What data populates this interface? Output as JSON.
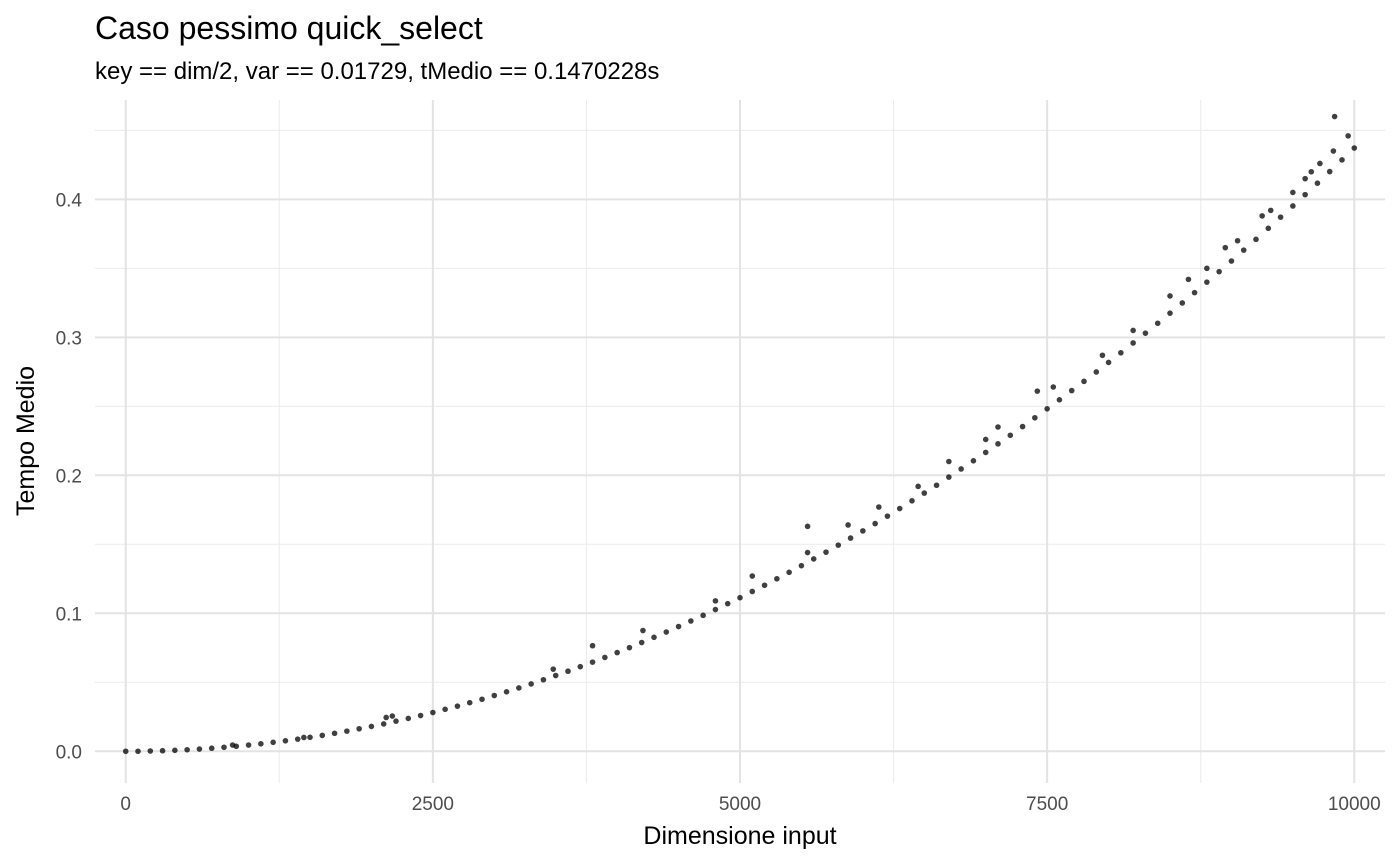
{
  "chart_data": {
    "type": "scatter",
    "title": "Caso pessimo quick_select",
    "subtitle": "key == dim/2, var == 0.01729, tMedio == 0.1470228s",
    "xlabel": "Dimensione input",
    "ylabel": "Tempo Medio",
    "xlim": [
      -250,
      10250
    ],
    "ylim": [
      -0.023,
      0.472
    ],
    "x_ticks": [
      0,
      2500,
      5000,
      7500,
      10000
    ],
    "x_tick_labels": [
      "0",
      "2500",
      "5000",
      "7500",
      "10000"
    ],
    "y_ticks": [
      0.0,
      0.1,
      0.2,
      0.3,
      0.4
    ],
    "y_tick_labels": [
      "0.0",
      "0.1",
      "0.2",
      "0.3",
      "0.4"
    ],
    "grid": true,
    "point_color": "#000000",
    "series": [
      {
        "points": [
          [
            0,
            0.0
          ],
          [
            100,
            0.0
          ],
          [
            200,
            0.0002
          ],
          [
            300,
            0.0004
          ],
          [
            400,
            0.0007
          ],
          [
            500,
            0.0011
          ],
          [
            600,
            0.0016
          ],
          [
            700,
            0.0022
          ],
          [
            800,
            0.0029
          ],
          [
            900,
            0.0036
          ],
          [
            1000,
            0.0045
          ],
          [
            1100,
            0.0054
          ],
          [
            1200,
            0.0065
          ],
          [
            1300,
            0.0076
          ],
          [
            1400,
            0.0088
          ],
          [
            1500,
            0.0101
          ],
          [
            1600,
            0.0115
          ],
          [
            1700,
            0.013
          ],
          [
            1800,
            0.0146
          ],
          [
            1900,
            0.0163
          ],
          [
            2000,
            0.018
          ],
          [
            2100,
            0.0198
          ],
          [
            2200,
            0.0218
          ],
          [
            2300,
            0.0238
          ],
          [
            2400,
            0.0259
          ],
          [
            2500,
            0.0281
          ],
          [
            2600,
            0.0304
          ],
          [
            2700,
            0.0327
          ],
          [
            2800,
            0.0352
          ],
          [
            2900,
            0.0377
          ],
          [
            3000,
            0.0404
          ],
          [
            3100,
            0.0431
          ],
          [
            3200,
            0.0459
          ],
          [
            3300,
            0.0488
          ],
          [
            3400,
            0.0518
          ],
          [
            3500,
            0.0549
          ],
          [
            3600,
            0.058
          ],
          [
            3700,
            0.0613
          ],
          [
            3800,
            0.0646
          ],
          [
            3900,
            0.068
          ],
          [
            4000,
            0.0715
          ],
          [
            4100,
            0.0751
          ],
          [
            4200,
            0.0788
          ],
          [
            4300,
            0.0826
          ],
          [
            4400,
            0.0864
          ],
          [
            4500,
            0.0904
          ],
          [
            4600,
            0.0944
          ],
          [
            4700,
            0.0985
          ],
          [
            4800,
            0.1027
          ],
          [
            4900,
            0.107
          ],
          [
            5000,
            0.1113
          ],
          [
            5100,
            0.1158
          ],
          [
            5200,
            0.1203
          ],
          [
            5300,
            0.125
          ],
          [
            5400,
            0.1297
          ],
          [
            5500,
            0.1345
          ],
          [
            5600,
            0.1394
          ],
          [
            5700,
            0.1443
          ],
          [
            5800,
            0.1494
          ],
          [
            5900,
            0.1545
          ],
          [
            6000,
            0.1597
          ],
          [
            6100,
            0.165
          ],
          [
            6200,
            0.1704
          ],
          [
            6300,
            0.1759
          ],
          [
            6400,
            0.1815
          ],
          [
            6500,
            0.1871
          ],
          [
            6600,
            0.1928
          ],
          [
            6700,
            0.1987
          ],
          [
            6800,
            0.2046
          ],
          [
            6900,
            0.2105
          ],
          [
            7000,
            0.2166
          ],
          [
            7100,
            0.2228
          ],
          [
            7200,
            0.229
          ],
          [
            7300,
            0.2353
          ],
          [
            7400,
            0.2417
          ],
          [
            7500,
            0.2482
          ],
          [
            7600,
            0.2547
          ],
          [
            7700,
            0.2614
          ],
          [
            7800,
            0.2681
          ],
          [
            7900,
            0.2749
          ],
          [
            8000,
            0.2818
          ],
          [
            8100,
            0.2888
          ],
          [
            8200,
            0.2959
          ],
          [
            8300,
            0.303
          ],
          [
            8400,
            0.3102
          ],
          [
            8500,
            0.3175
          ],
          [
            8600,
            0.3249
          ],
          [
            8700,
            0.3324
          ],
          [
            8800,
            0.34
          ],
          [
            8900,
            0.3476
          ],
          [
            9000,
            0.3553
          ],
          [
            9100,
            0.3632
          ],
          [
            9200,
            0.371
          ],
          [
            9300,
            0.379
          ],
          [
            9400,
            0.3871
          ],
          [
            9500,
            0.3952
          ],
          [
            9600,
            0.4034
          ],
          [
            9700,
            0.4117
          ],
          [
            9800,
            0.4201
          ],
          [
            9900,
            0.4286
          ],
          [
            10000,
            0.4372
          ],
          [
            870,
            0.0045
          ],
          [
            1450,
            0.01
          ],
          [
            2120,
            0.0245
          ],
          [
            2170,
            0.0255
          ],
          [
            3480,
            0.0595
          ],
          [
            3800,
            0.0765
          ],
          [
            4210,
            0.0875
          ],
          [
            4800,
            0.109
          ],
          [
            5100,
            0.127
          ],
          [
            5550,
            0.163
          ],
          [
            5550,
            0.144
          ],
          [
            5880,
            0.164
          ],
          [
            6130,
            0.177
          ],
          [
            6450,
            0.192
          ],
          [
            6700,
            0.21
          ],
          [
            7000,
            0.226
          ],
          [
            7100,
            0.235
          ],
          [
            7420,
            0.261
          ],
          [
            7550,
            0.264
          ],
          [
            7950,
            0.287
          ],
          [
            8200,
            0.305
          ],
          [
            8500,
            0.33
          ],
          [
            8800,
            0.35
          ],
          [
            9050,
            0.37
          ],
          [
            9250,
            0.388
          ],
          [
            9500,
            0.405
          ],
          [
            9650,
            0.42
          ],
          [
            9720,
            0.426
          ],
          [
            9840,
            0.46
          ],
          [
            9950,
            0.446
          ],
          [
            9830,
            0.435
          ],
          [
            9600,
            0.415
          ],
          [
            9320,
            0.392
          ],
          [
            8950,
            0.365
          ],
          [
            8650,
            0.342
          ]
        ]
      }
    ]
  }
}
